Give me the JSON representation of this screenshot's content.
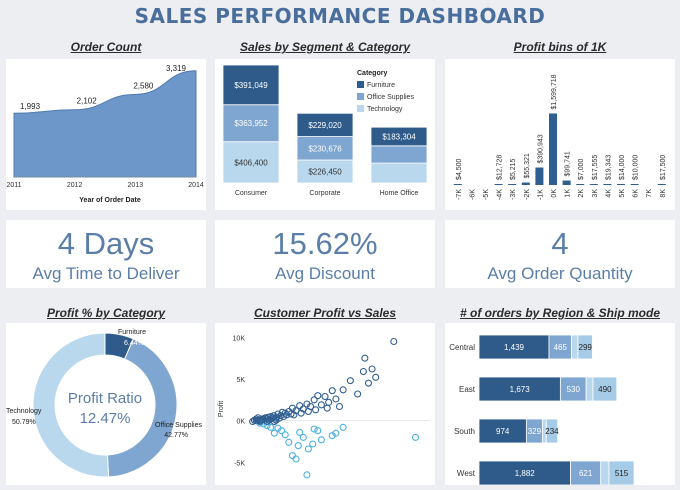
{
  "title": "SALES PERFORMANCE DASHBOARD",
  "colors": {
    "dark": "#2e5b8a",
    "mid": "#7ea6d0",
    "light": "#b9d8ee",
    "title": "#4a6e9c",
    "kpi": "#5b7ea8"
  },
  "kpis": [
    {
      "value": "4 Days",
      "label": "Avg Time to Deliver"
    },
    {
      "value": "15.62%",
      "label": "Avg Discount"
    },
    {
      "value": "4",
      "label": "Avg Order Quantity"
    }
  ],
  "chart_data": [
    {
      "type": "area",
      "title": "Order Count",
      "xlabel": "Year of Order Date",
      "x": [
        "2011",
        "2012",
        "2013",
        "2014"
      ],
      "values": [
        1993,
        2102,
        2580,
        3319
      ],
      "labels": [
        "1,993",
        "2,102",
        "2,580",
        "3,319"
      ],
      "ylim": [
        0,
        3500
      ]
    },
    {
      "type": "bar",
      "title": "Sales by Segment & Category",
      "categories": [
        "Consumer",
        "Corporate",
        "Home Office"
      ],
      "legend_title": "Category",
      "legend_position": "right",
      "series": [
        {
          "name": "Furniture",
          "values": [
            391049,
            229020,
            183304
          ],
          "labels": [
            "$391,049",
            "$229,020",
            "$183,304"
          ]
        },
        {
          "name": "Office Supplies",
          "values": [
            363952,
            230676,
            170000
          ],
          "labels": [
            "$363,952",
            "$230,676",
            ""
          ]
        },
        {
          "name": "Technology",
          "values": [
            406400,
            226450,
            196000
          ],
          "labels": [
            "$406,400",
            "$226,450",
            ""
          ]
        }
      ]
    },
    {
      "type": "bar",
      "title": "Profit bins of 1K",
      "categories": [
        "-7K",
        "-6K",
        "-5K",
        "-4K",
        "-3K",
        "-2K",
        "-1K",
        "0K",
        "1K",
        "2K",
        "3K",
        "4K",
        "5K",
        "6K",
        "7K",
        "8K"
      ],
      "values": [
        4500,
        0,
        0,
        12728,
        5215,
        55321,
        390943,
        1599718,
        99741,
        7000,
        17555,
        19343,
        14000,
        10000,
        0,
        17500
      ],
      "labels": [
        "$4,500",
        "",
        "",
        "$12,728",
        "$5,215",
        "$55,321",
        "$390,943",
        "$1,599,718",
        "$99,741",
        "$7,000",
        "$17,555",
        "$19,343",
        "$14,000",
        "$10,000",
        "",
        "$17,500"
      ],
      "ylim": [
        0,
        1700000
      ]
    },
    {
      "type": "pie",
      "title": "Profit % by Category",
      "center_label": "Profit Ratio",
      "center_value": "12.47%",
      "slices": [
        {
          "name": "Furniture",
          "value": 6.44,
          "label": "6.44%"
        },
        {
          "name": "Office Supplies",
          "value": 42.77,
          "label": "42.77%"
        },
        {
          "name": "Technology",
          "value": 50.79,
          "label": "50.79%"
        }
      ]
    },
    {
      "type": "scatter",
      "title": "Customer Profit vs Sales",
      "ylabel": "Profit",
      "yticks": [
        "10K",
        "5K",
        "0K",
        "-5K"
      ],
      "ytick_values": [
        10000,
        5000,
        0,
        -5000
      ],
      "ylim": [
        -7000,
        11000
      ],
      "xlim": [
        0,
        25000
      ],
      "series": [
        {
          "name": "positive",
          "points": [
            [
              20000,
              9500
            ],
            [
              16000,
              7500
            ],
            [
              17000,
              6200
            ],
            [
              17500,
              5200
            ],
            [
              15800,
              5900
            ],
            [
              16500,
              4500
            ],
            [
              15000,
              3200
            ],
            [
              14000,
              4800
            ],
            [
              13000,
              3700
            ],
            [
              12000,
              2600
            ],
            [
              11500,
              3600
            ],
            [
              11000,
              2200
            ],
            [
              10500,
              2900
            ],
            [
              10000,
              1900
            ],
            [
              9500,
              3000
            ],
            [
              9000,
              2500
            ],
            [
              8500,
              1700
            ],
            [
              8000,
              2000
            ],
            [
              7500,
              1400
            ],
            [
              7000,
              1800
            ],
            [
              6500,
              1200
            ],
            [
              6000,
              1500
            ],
            [
              5800,
              800
            ],
            [
              5500,
              1100
            ],
            [
              5200,
              700
            ],
            [
              5000,
              900
            ],
            [
              4800,
              500
            ],
            [
              4600,
              1000
            ],
            [
              4400,
              600
            ],
            [
              4200,
              300
            ],
            [
              4000,
              800
            ],
            [
              3800,
              400
            ],
            [
              3600,
              200
            ],
            [
              3400,
              600
            ],
            [
              3200,
              300
            ],
            [
              3000,
              500
            ],
            [
              2800,
              100
            ],
            [
              2600,
              400
            ],
            [
              2400,
              200
            ],
            [
              2200,
              300
            ],
            [
              2000,
              100
            ],
            [
              1800,
              200
            ],
            [
              1600,
              0
            ],
            [
              1400,
              100
            ],
            [
              1200,
              50
            ],
            [
              1000,
              0
            ],
            [
              6200,
              700
            ],
            [
              7200,
              900
            ],
            [
              8200,
              1100
            ],
            [
              9200,
              1300
            ],
            [
              10800,
              1500
            ],
            [
              12500,
              1700
            ]
          ]
        },
        {
          "name": "negative",
          "points": [
            [
              23000,
              -2000
            ],
            [
              13000,
              -800
            ],
            [
              12000,
              -1500
            ],
            [
              11500,
              -1800
            ],
            [
              10000,
              -2300
            ],
            [
              9500,
              -1200
            ],
            [
              8800,
              -2800
            ],
            [
              8200,
              -3400
            ],
            [
              7500,
              -2000
            ],
            [
              6800,
              -3000
            ],
            [
              6000,
              -4200
            ],
            [
              5500,
              -2600
            ],
            [
              5000,
              -1700
            ],
            [
              4500,
              -1200
            ],
            [
              4000,
              -900
            ],
            [
              3500,
              -1500
            ],
            [
              3000,
              -800
            ],
            [
              2500,
              -600
            ],
            [
              2000,
              -400
            ],
            [
              1500,
              -300
            ],
            [
              8000,
              -6500
            ],
            [
              6500,
              -4600
            ],
            [
              9000,
              -1000
            ],
            [
              7000,
              -1400
            ]
          ]
        }
      ]
    },
    {
      "type": "bar",
      "title": "# of orders by Region & Ship mode",
      "orientation": "horizontal",
      "categories": [
        "Central",
        "East",
        "South",
        "West"
      ],
      "series": [
        {
          "name": "seg1",
          "values": [
            1439,
            1673,
            974,
            1882
          ],
          "labels": [
            "1,439",
            "1,673",
            "974",
            "1,882"
          ]
        },
        {
          "name": "seg2",
          "values": [
            465,
            530,
            329,
            621
          ],
          "labels": [
            "465",
            "530",
            "329",
            "621"
          ]
        },
        {
          "name": "seg3",
          "values": [
            130,
            140,
            80,
            170
          ],
          "labels": [
            "",
            "",
            "",
            ""
          ]
        },
        {
          "name": "seg4",
          "values": [
            299,
            490,
            234,
            515
          ],
          "labels": [
            "299",
            "490",
            "234",
            "515"
          ]
        }
      ]
    }
  ]
}
